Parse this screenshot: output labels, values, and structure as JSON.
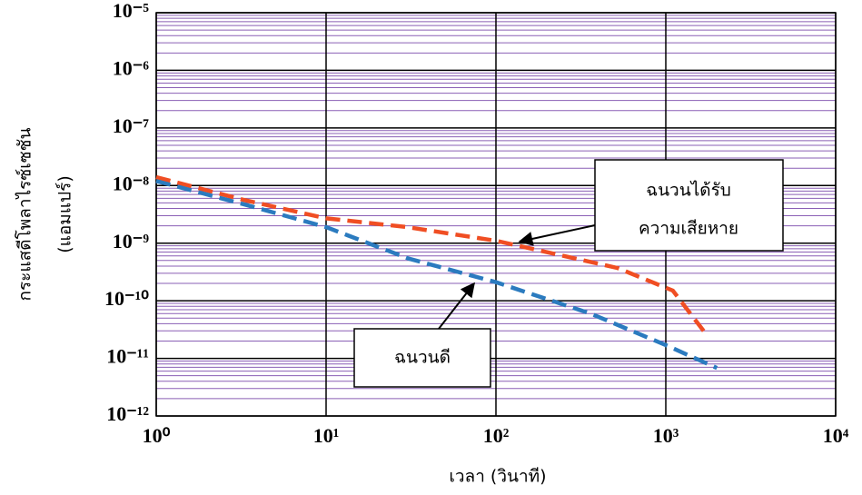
{
  "chart_data": {
    "type": "line",
    "xlog": true,
    "ylog": true,
    "grid": true,
    "xlabel": "เวลา (วินาที)",
    "ylabel": [
      "กระแสดีโพลาไรซ์เซชัน",
      "(แอมแปร์)"
    ],
    "xlim": [
      1,
      10000
    ],
    "xticks": [
      {
        "value": 1,
        "label": "10⁰"
      },
      {
        "value": 10,
        "label": "10¹"
      },
      {
        "value": 100,
        "label": "10²"
      },
      {
        "value": 1000,
        "label": "10³"
      },
      {
        "value": 10000,
        "label": "10⁴"
      }
    ],
    "ylim": [
      1e-12,
      1e-05
    ],
    "yticks": [
      {
        "value": 1e-12,
        "label": "10⁻¹²"
      },
      {
        "value": 1e-11,
        "label": "10⁻¹¹"
      },
      {
        "value": 1e-10,
        "label": "10⁻¹⁰"
      },
      {
        "value": 1e-09,
        "label": "10⁻⁹"
      },
      {
        "value": 1e-08,
        "label": "10⁻⁸"
      },
      {
        "value": 1e-07,
        "label": "10⁻⁷"
      },
      {
        "value": 1e-06,
        "label": "10⁻⁶"
      },
      {
        "value": 1e-05,
        "label": "10⁻⁵"
      }
    ],
    "series": [
      {
        "color": "#f04e23",
        "x": [
          1,
          3.3,
          10,
          30,
          100,
          520,
          1100,
          1750
        ],
        "values": [
          1.4e-08,
          5.6e-09,
          2.7e-09,
          1.9e-09,
          1.1e-09,
          3.7e-10,
          1.5e-10,
          2.5e-11
        ]
      },
      {
        "color": "#2b7bbf",
        "x": [
          1,
          3.3,
          10,
          30.6,
          100,
          360,
          1000,
          2000
        ],
        "values": [
          1.2e-08,
          4.7e-09,
          1.9e-09,
          5.4e-10,
          2.1e-10,
          6e-11,
          1.7e-11,
          6.8e-12
        ]
      }
    ],
    "annotations": [
      {
        "text": [
          "ฉนวนได้รับ",
          "ความเสียหาย"
        ]
      },
      {
        "text": [
          "ฉนวนดี"
        ]
      }
    ]
  }
}
